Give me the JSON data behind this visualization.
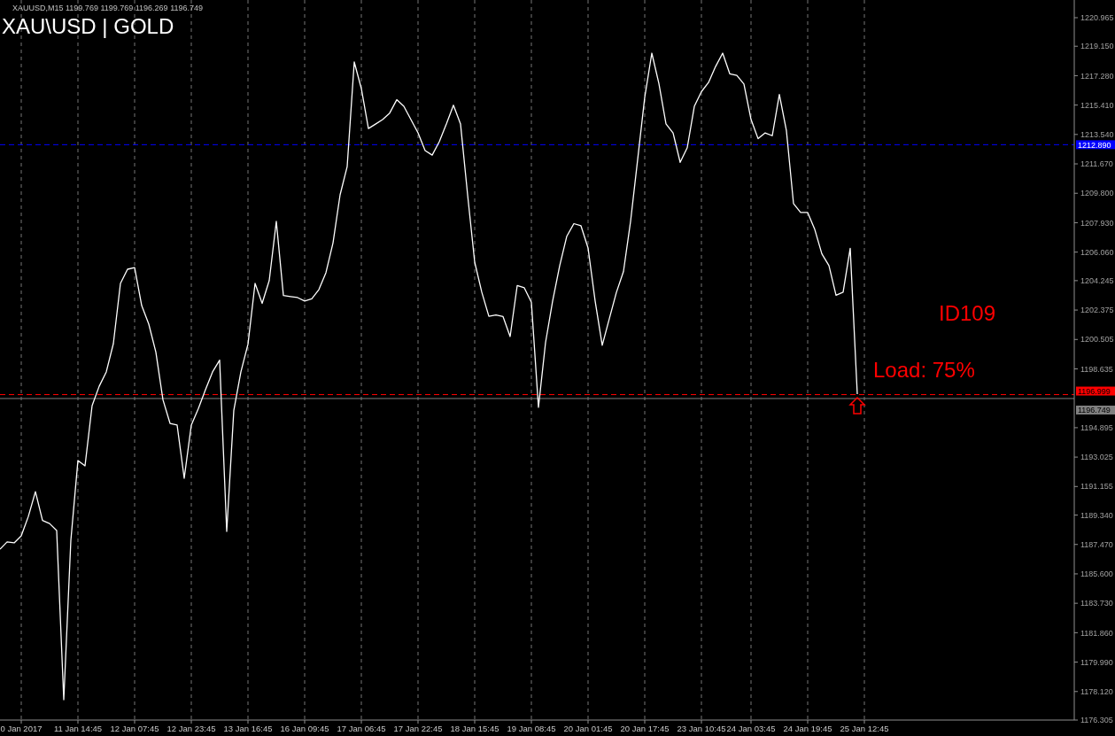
{
  "chart_data": {
    "type": "line",
    "title": "XAU\\USD | GOLD",
    "annotations": [
      "XAUUSD,M15  1199.769 1199.769 1196.269 1196.749",
      "ID109",
      "Load: 75%"
    ],
    "categories": [
      null,
      null,
      null,
      "0 Jan 2017",
      null,
      null,
      null,
      null,
      null,
      null,
      null,
      "11 Jan 14:45",
      null,
      null,
      null,
      null,
      null,
      null,
      null,
      "12 Jan 07:45",
      null,
      null,
      null,
      null,
      null,
      null,
      null,
      "12 Jan 23:45",
      null,
      null,
      null,
      null,
      null,
      null,
      null,
      "13 Jan 16:45",
      null,
      null,
      null,
      null,
      null,
      null,
      null,
      "16 Jan 09:45",
      null,
      null,
      null,
      null,
      null,
      null,
      null,
      "17 Jan 06:45",
      null,
      null,
      null,
      null,
      null,
      null,
      null,
      "17 Jan 22:45",
      null,
      null,
      null,
      null,
      null,
      null,
      null,
      "18 Jan 15:45",
      null,
      null,
      null,
      null,
      null,
      null,
      null,
      "19 Jan 08:45",
      null,
      null,
      null,
      null,
      null,
      null,
      null,
      "20 Jan 01:45",
      null,
      null,
      null,
      null,
      null,
      null,
      null,
      "20 Jan 17:45",
      null,
      null,
      null,
      null,
      null,
      null,
      null,
      "23 Jan 10:45",
      null,
      null,
      null,
      null,
      null,
      null,
      "24 Jan 03:45",
      null,
      null,
      null,
      null,
      null,
      null,
      null,
      "24 Jan 19:45",
      null,
      null,
      null,
      null,
      null,
      null,
      null,
      "25 Jan 12:45",
      null,
      null,
      null,
      null,
      null,
      null,
      null,
      null,
      null,
      null,
      null,
      null,
      null,
      null,
      null,
      null,
      null,
      null,
      null,
      null,
      null,
      null,
      null,
      null,
      null,
      null,
      null,
      null,
      null
    ],
    "series": [
      {
        "color": "#ffffff",
        "values": [
          1187.17,
          1187.63,
          1187.57,
          1188.02,
          1189.25,
          1190.83,
          1189.0,
          1188.8,
          1188.36,
          1177.6,
          1187.74,
          1192.81,
          1192.47,
          1196.3,
          1197.53,
          1198.44,
          1200.24,
          1204.07,
          1204.97,
          1205.08,
          1202.66,
          1201.48,
          1199.7,
          1196.67,
          1195.17,
          1195.06,
          1191.68,
          1195.06,
          1196.11,
          1197.31,
          1198.44,
          1199.19,
          1188.3,
          1196.0,
          1198.44,
          1200.2,
          1204.07,
          1202.8,
          1204.25,
          1208.01,
          1203.3,
          1203.23,
          1203.17,
          1202.95,
          1203.09,
          1203.67,
          1204.75,
          1206.64,
          1209.7,
          1211.5,
          1218.15,
          1216.46,
          1213.92,
          1214.2,
          1214.49,
          1214.9,
          1215.75,
          1215.33,
          1214.49,
          1213.64,
          1212.52,
          1212.23,
          1213.08,
          1214.2,
          1215.4,
          1214.21,
          1209.7,
          1205.42,
          1203.51,
          1201.98,
          1202.06,
          1201.96,
          1200.69,
          1203.93,
          1203.79,
          1202.87,
          1196.19,
          1200.31,
          1202.95,
          1205.2,
          1207.07,
          1207.87,
          1207.73,
          1206.32,
          1202.95,
          1200.13,
          1201.82,
          1203.5,
          1204.83,
          1208.01,
          1211.95,
          1215.9,
          1218.71,
          1216.78,
          1214.21,
          1213.64,
          1211.77,
          1212.7,
          1215.33,
          1216.26,
          1216.84,
          1217.86,
          1218.71,
          1217.4,
          1217.3,
          1216.75,
          1214.5,
          1213.27,
          1213.64,
          1213.46,
          1216.08,
          1213.77,
          1209.14,
          1208.58,
          1208.58,
          1207.5,
          1205.95,
          1205.2,
          1203.32,
          1203.51,
          1206.3,
          1197.03,
          null,
          null,
          null,
          null,
          null,
          null,
          null,
          null,
          null,
          null,
          null,
          null,
          null,
          null,
          null,
          null,
          null,
          null,
          null,
          null,
          null,
          null,
          null,
          null,
          null,
          null,
          null,
          null,
          null,
          null
        ]
      }
    ],
    "ylim": [
      1176.305,
      1222.09
    ],
    "yticks": [
      1176.305,
      {
        "value": 1178.12,
        "label": "1178.120"
      },
      {
        "value": 1179.99,
        "label": "1179.990"
      },
      {
        "value": 1181.86,
        "label": "1181.860"
      },
      {
        "value": 1183.73,
        "label": "1183.730"
      },
      {
        "value": 1185.6,
        "label": "1185.600"
      },
      {
        "value": 1187.47,
        "label": "1187.470"
      },
      {
        "value": 1189.34,
        "label": "1189.340"
      },
      1191.155,
      1193.025,
      1194.895,
      1198.635,
      1200.505,
      1202.375,
      1204.245,
      {
        "value": 1206.06,
        "label": "1206.060"
      },
      {
        "value": 1207.93,
        "label": "1207.930"
      },
      {
        "value": 1209.8,
        "label": "1209.800"
      },
      {
        "value": 1211.67,
        "label": "1211.670"
      },
      {
        "value": 1213.54,
        "label": "1213.540"
      },
      {
        "value": 1215.41,
        "label": "1215.410"
      },
      {
        "value": 1217.28,
        "label": "1217.280"
      },
      {
        "value": 1219.15,
        "label": "1219.150"
      },
      1220.965
    ],
    "grid": "x",
    "ref_lines": [
      {
        "axis": "y",
        "value": 1212.89,
        "label": "1212.890",
        "color": "#0000ff",
        "line_style": "dashed"
      },
      {
        "axis": "y",
        "value": 1196.999,
        "label": "1196.999",
        "color": "#ff0000",
        "line_style": "dashed"
      },
      {
        "axis": "y",
        "value": 1196.749,
        "label": "1196.749",
        "color": "#808080",
        "line_style": "solid"
      }
    ]
  }
}
